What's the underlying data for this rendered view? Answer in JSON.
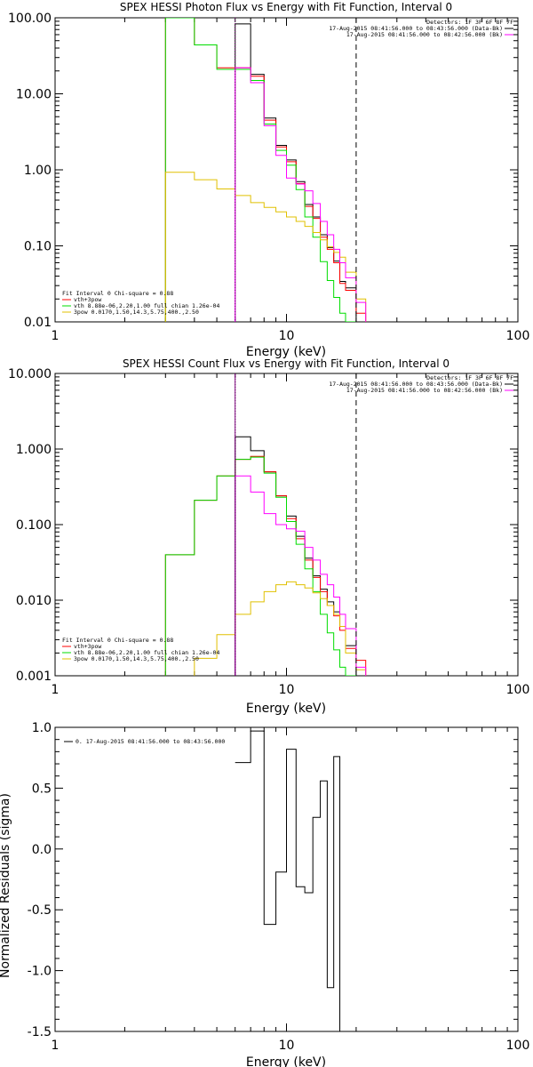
{
  "chart_data": [
    {
      "type": "line",
      "title": "SPEX HESSI Photon Flux vs Energy with Fit Function, Interval 0",
      "xlabel": "Energy (keV)",
      "ylabel": "",
      "xscale": "log",
      "yscale": "log",
      "xlim": [
        1,
        100
      ],
      "ylim": [
        0.01,
        100
      ],
      "x_ticks": [
        "1",
        "10",
        "100"
      ],
      "y_ticks": [
        "0.01",
        "0.10",
        "1.00",
        "10.00",
        "100.00"
      ],
      "x_edges": [
        3,
        4,
        5,
        6,
        7,
        8,
        9,
        10,
        11,
        12,
        13,
        14,
        15,
        16,
        17,
        18,
        20,
        22
      ],
      "series": [
        {
          "name": "data",
          "color": "#000000",
          "values": [
            null,
            null,
            null,
            83,
            18,
            4.8,
            2.1,
            1.35,
            0.7,
            0.35,
            0.24,
            0.14,
            0.095,
            0.063,
            0.034,
            0.028,
            null
          ]
        },
        {
          "name": "vth+3pow",
          "color": "#ff0000",
          "values": [
            100,
            44,
            22,
            22,
            17,
            4.5,
            2.0,
            1.28,
            0.66,
            0.33,
            0.23,
            0.13,
            0.09,
            0.06,
            0.032,
            0.026,
            0.013
          ]
        },
        {
          "name": "vth",
          "color": "#00dd00",
          "values": [
            100,
            44,
            21,
            21,
            15,
            4.0,
            1.8,
            1.15,
            0.55,
            0.24,
            0.13,
            0.062,
            0.035,
            0.021,
            0.013,
            0.01,
            null
          ]
        },
        {
          "name": "3pow",
          "color": "#e0c000",
          "values": [
            0.93,
            0.74,
            0.56,
            0.46,
            0.37,
            0.32,
            0.28,
            0.24,
            0.21,
            0.18,
            0.15,
            0.12,
            0.097,
            0.082,
            0.071,
            0.045,
            0.02
          ]
        },
        {
          "name": "",
          "color": "#ff00ff",
          "values": [
            null,
            null,
            null,
            22,
            14,
            3.8,
            1.55,
            0.78,
            0.65,
            0.53,
            0.36,
            0.21,
            0.14,
            0.09,
            0.06,
            0.038,
            0.018
          ]
        }
      ],
      "legend": [
        {
          "text": "Fit Interval 0   Chi-square = 0.88",
          "color": ""
        },
        {
          "text": "vth+3pow",
          "color": "#ff0000"
        },
        {
          "text": "vth 8.88e-06,2.20,1.00  full chian 1.26e-04",
          "color": "#00dd00"
        },
        {
          "text": "3pow 0.0170,1.50,14.3,5.75,400.,2.50",
          "color": "#e0c000"
        }
      ],
      "top_info": [
        {
          "text": "Detectors: 1F 3F 6F 8F 7F",
          "color": ""
        },
        {
          "text": "17-Aug-2015 08:41:56.000 to 08:43:56.000 (Data-Bk)",
          "color": "#000000"
        },
        {
          "text": "17-Aug-2015 08:41:56.000 to 08:42:56.000 (Bk)",
          "color": "#ff00ff"
        }
      ],
      "markers": [
        {
          "x": 6,
          "style": "dotted",
          "color": "#800080"
        },
        {
          "x": 20,
          "style": "dashed",
          "color": "#000000"
        }
      ],
      "grid": false
    },
    {
      "type": "line",
      "title": "SPEX HESSI Count Flux vs Energy with Fit Function, Interval 0",
      "xlabel": "Energy (keV)",
      "ylabel": "",
      "xscale": "log",
      "yscale": "log",
      "xlim": [
        1,
        100
      ],
      "ylim": [
        0.001,
        10
      ],
      "x_ticks": [
        "1",
        "10",
        "100"
      ],
      "y_ticks": [
        "0.001",
        "0.010",
        "0.100",
        "1.000",
        "10.000"
      ],
      "x_edges": [
        3,
        4,
        5,
        6,
        7,
        8,
        9,
        10,
        11,
        12,
        13,
        14,
        15,
        16,
        17,
        18,
        20,
        22
      ],
      "series": [
        {
          "name": "data",
          "color": "#000000",
          "values": [
            null,
            null,
            null,
            1.45,
            0.95,
            0.5,
            0.24,
            0.13,
            0.07,
            0.036,
            0.021,
            0.014,
            0.0095,
            0.007,
            0.0045,
            0.0025,
            null
          ]
        },
        {
          "name": "vth+3pow",
          "color": "#ff0000",
          "values": [
            0.04,
            0.21,
            0.44,
            0.73,
            0.8,
            0.5,
            0.24,
            0.12,
            0.065,
            0.034,
            0.02,
            0.013,
            0.0085,
            0.0062,
            0.004,
            0.0023,
            0.0016
          ]
        },
        {
          "name": "vth",
          "color": "#00dd00",
          "values": [
            0.04,
            0.21,
            0.44,
            0.73,
            0.78,
            0.48,
            0.23,
            0.11,
            0.055,
            0.026,
            0.013,
            0.0065,
            0.0037,
            0.0022,
            0.0013,
            0.001,
            null
          ]
        },
        {
          "name": "3pow",
          "color": "#e0c000",
          "values": [
            null,
            0.0017,
            0.0035,
            0.0065,
            0.0095,
            0.013,
            0.016,
            0.0175,
            0.016,
            0.0145,
            0.0125,
            0.0105,
            0.0085,
            0.0065,
            0.0045,
            0.002,
            0.0012
          ]
        },
        {
          "name": "",
          "color": "#ff00ff",
          "values": [
            null,
            null,
            null,
            0.44,
            0.27,
            0.14,
            0.1,
            0.088,
            0.082,
            0.05,
            0.034,
            0.022,
            0.016,
            0.011,
            0.0065,
            0.0042,
            0.0013
          ]
        }
      ],
      "legend": [
        {
          "text": "Fit Interval 0   Chi-square = 0.88",
          "color": ""
        },
        {
          "text": "vth+3pow",
          "color": "#ff0000"
        },
        {
          "text": "vth 8.88e-06,2.20,1.00  full chian 1.26e-04",
          "color": "#00dd00"
        },
        {
          "text": "3pow 0.0170,1.50,14.3,5.75,400.,2.50",
          "color": "#e0c000"
        }
      ],
      "top_info": [
        {
          "text": "Detectors: 1F 3F 6F 8F 7F",
          "color": ""
        },
        {
          "text": "17-Aug-2015 08:41:56.000 to 08:43:56.000 (Data-Bk)",
          "color": "#000000"
        },
        {
          "text": "17-Aug-2015 08:41:56.000 to 08:42:56.000 (Bk)",
          "color": "#ff00ff"
        }
      ],
      "markers": [
        {
          "x": 6,
          "style": "dotted",
          "color": "#000000"
        },
        {
          "x": 6,
          "style": "solid",
          "color": "#800080"
        },
        {
          "x": 20,
          "style": "dashed",
          "color": "#000000"
        }
      ],
      "grid": false
    },
    {
      "type": "line",
      "title": "",
      "xlabel": "Energy (keV)",
      "ylabel": "Normalized Residuals (sigma)",
      "xscale": "log",
      "yscale": "linear",
      "xlim": [
        1,
        100
      ],
      "ylim": [
        -1.5,
        1.0
      ],
      "x_ticks": [
        "1",
        "10",
        "100"
      ],
      "y_ticks": [
        "-1.5",
        "-1.0",
        "-0.5",
        "0.0",
        "0.5",
        "1.0"
      ],
      "x_edges": [
        6,
        7,
        8,
        9,
        10,
        11,
        12,
        13,
        14,
        15,
        16,
        17,
        18,
        20
      ],
      "series": [
        {
          "name": "0. 17-Aug-2015 08:41:56.000 to 08:43:56.000",
          "color": "#000000",
          "values": [
            0.71,
            0.97,
            -0.62,
            -0.19,
            0.82,
            -0.31,
            -0.36,
            0.26,
            0.56,
            -1.14,
            0.76,
            -1.5,
            null
          ]
        }
      ],
      "legend": [
        {
          "text": "0. 17-Aug-2015 08:41:56.000 to 08:43:56.000",
          "color": "#000000"
        }
      ],
      "top_info": [],
      "markers": [],
      "grid": false
    }
  ]
}
